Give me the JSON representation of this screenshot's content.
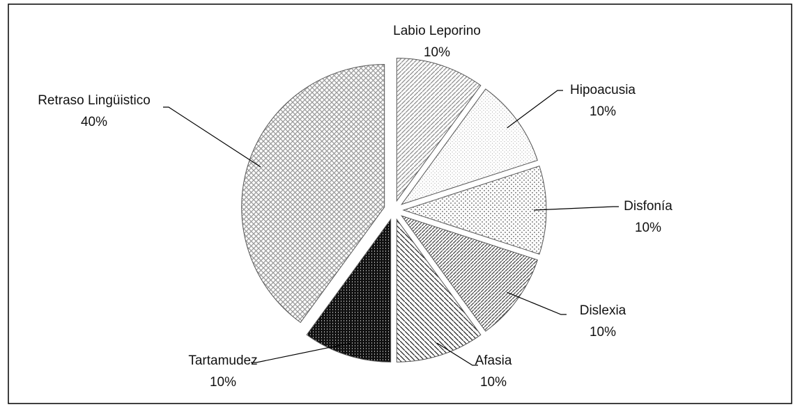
{
  "chart_data": {
    "type": "pie",
    "categories": [
      "Labio Leporino",
      "Hipoacusia",
      "Disfonía",
      "Dislexia",
      "Afasia",
      "Tartamudez",
      "Retraso Lingüistico"
    ],
    "values": [
      10,
      10,
      10,
      10,
      10,
      10,
      40
    ],
    "value_labels": [
      "10%",
      "10%",
      "10%",
      "10%",
      "10%",
      "10%",
      "40%"
    ],
    "colors": [
      "#8c8c8c",
      "#b0b0b0",
      "#6e6e6e",
      "#4a4a4a",
      "#262626",
      "#111111",
      "#9a9a9a"
    ]
  }
}
